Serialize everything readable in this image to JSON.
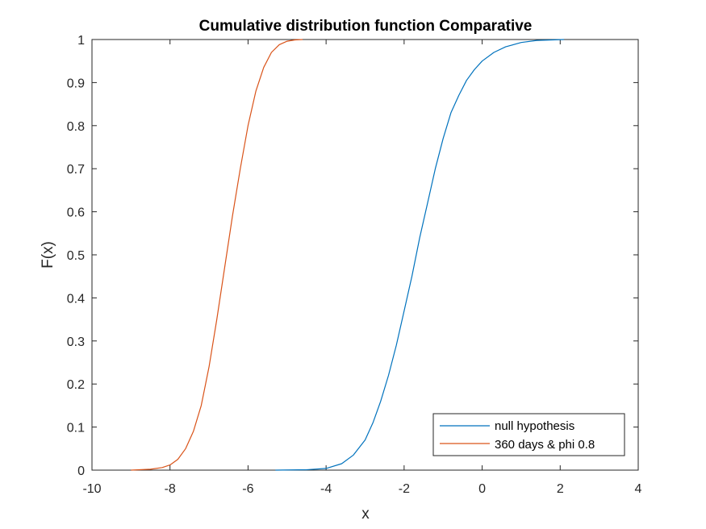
{
  "chart_data": {
    "type": "line",
    "title": "Cumulative distribution function Comparative",
    "xlabel": "x",
    "ylabel": "F(x)",
    "xlim": [
      -10,
      4
    ],
    "ylim": [
      0,
      1
    ],
    "xticks": [
      -10,
      -8,
      -6,
      -4,
      -2,
      0,
      2,
      4
    ],
    "yticks": [
      0,
      0.1,
      0.2,
      0.3,
      0.4,
      0.5,
      0.6,
      0.7,
      0.8,
      0.9,
      1
    ],
    "xtick_labels": [
      "-10",
      "-8",
      "-6",
      "-4",
      "-2",
      "0",
      "2",
      "4"
    ],
    "ytick_labels": [
      "0",
      "0.1",
      "0.2",
      "0.3",
      "0.4",
      "0.5",
      "0.6",
      "0.7",
      "0.8",
      "0.9",
      "1"
    ],
    "grid": false,
    "box": true,
    "legend_position": "bottom-right",
    "series": [
      {
        "name": "null hypothesis",
        "color": "#0072BD",
        "x": [
          -5.3,
          -4.5,
          -4.0,
          -3.6,
          -3.3,
          -3.0,
          -2.8,
          -2.6,
          -2.4,
          -2.2,
          -2.0,
          -1.8,
          -1.6,
          -1.4,
          -1.2,
          -1.0,
          -0.8,
          -0.6,
          -0.4,
          -0.2,
          0.0,
          0.3,
          0.6,
          1.0,
          1.4,
          2.1
        ],
        "y": [
          0.0,
          0.001,
          0.004,
          0.015,
          0.035,
          0.07,
          0.11,
          0.16,
          0.22,
          0.29,
          0.37,
          0.45,
          0.54,
          0.62,
          0.7,
          0.77,
          0.83,
          0.87,
          0.905,
          0.93,
          0.95,
          0.97,
          0.983,
          0.993,
          0.998,
          1.0
        ]
      },
      {
        "name": "360 days & phi 0.8",
        "color": "#D95319",
        "x": [
          -9.0,
          -8.5,
          -8.2,
          -8.0,
          -7.8,
          -7.6,
          -7.4,
          -7.2,
          -7.0,
          -6.8,
          -6.6,
          -6.4,
          -6.2,
          -6.0,
          -5.8,
          -5.6,
          -5.4,
          -5.2,
          -5.0,
          -4.8,
          -4.6
        ],
        "y": [
          0.0,
          0.002,
          0.006,
          0.012,
          0.025,
          0.05,
          0.09,
          0.15,
          0.24,
          0.35,
          0.47,
          0.59,
          0.7,
          0.8,
          0.88,
          0.935,
          0.97,
          0.988,
          0.996,
          0.999,
          1.0
        ]
      }
    ]
  }
}
